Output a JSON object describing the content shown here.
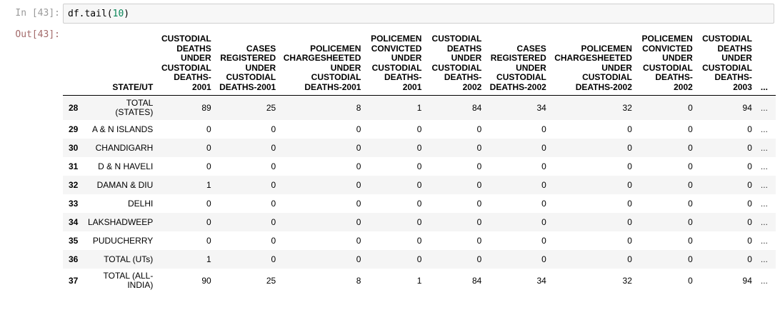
{
  "notebook": {
    "input_prompt": "In [43]:",
    "output_prompt": "Out[43]:",
    "code": {
      "prefix": "df.tail(",
      "arg": "10",
      "suffix": ")"
    }
  },
  "table": {
    "index_header": "",
    "columns": [
      "STATE/UT",
      "CUSTODIAL DEATHS UNDER CUSTODIAL DEATHS-2001",
      "CASES REGISTERED UNDER CUSTODIAL DEATHS-2001",
      "POLICEMEN CHARGESHEETED UNDER CUSTODIAL DEATHS-2001",
      "POLICEMEN CONVICTED UNDER CUSTODIAL DEATHS-2001",
      "CUSTODIAL DEATHS UNDER CUSTODIAL DEATHS-2002",
      "CASES REGISTERED UNDER CUSTODIAL DEATHS-2002",
      "POLICEMEN CHARGESHEETED UNDER CUSTODIAL DEATHS-2002",
      "POLICEMEN CONVICTED UNDER CUSTODIAL DEATHS-2002",
      "CUSTODIAL DEATHS UNDER CUSTODIAL DEATHS-2003",
      "..."
    ],
    "rows": [
      {
        "idx": "28",
        "state": "TOTAL (STATES)",
        "vals": [
          "89",
          "25",
          "8",
          "1",
          "84",
          "34",
          "32",
          "0",
          "94"
        ],
        "more": "..."
      },
      {
        "idx": "29",
        "state": "A & N ISLANDS",
        "vals": [
          "0",
          "0",
          "0",
          "0",
          "0",
          "0",
          "0",
          "0",
          "0"
        ],
        "more": "..."
      },
      {
        "idx": "30",
        "state": "CHANDIGARH",
        "vals": [
          "0",
          "0",
          "0",
          "0",
          "0",
          "0",
          "0",
          "0",
          "0"
        ],
        "more": "..."
      },
      {
        "idx": "31",
        "state": "D & N HAVELI",
        "vals": [
          "0",
          "0",
          "0",
          "0",
          "0",
          "0",
          "0",
          "0",
          "0"
        ],
        "more": "..."
      },
      {
        "idx": "32",
        "state": "DAMAN & DIU",
        "vals": [
          "1",
          "0",
          "0",
          "0",
          "0",
          "0",
          "0",
          "0",
          "0"
        ],
        "more": "..."
      },
      {
        "idx": "33",
        "state": "DELHI",
        "vals": [
          "0",
          "0",
          "0",
          "0",
          "0",
          "0",
          "0",
          "0",
          "0"
        ],
        "more": "..."
      },
      {
        "idx": "34",
        "state": "LAKSHADWEEP",
        "vals": [
          "0",
          "0",
          "0",
          "0",
          "0",
          "0",
          "0",
          "0",
          "0"
        ],
        "more": "..."
      },
      {
        "idx": "35",
        "state": "PUDUCHERRY",
        "vals": [
          "0",
          "0",
          "0",
          "0",
          "0",
          "0",
          "0",
          "0",
          "0"
        ],
        "more": "..."
      },
      {
        "idx": "36",
        "state": "TOTAL (UTs)",
        "vals": [
          "1",
          "0",
          "0",
          "0",
          "0",
          "0",
          "0",
          "0",
          "0"
        ],
        "more": "..."
      },
      {
        "idx": "37",
        "state": "TOTAL (ALL-INDIA)",
        "vals": [
          "90",
          "25",
          "8",
          "1",
          "84",
          "34",
          "32",
          "0",
          "94"
        ],
        "more": "..."
      }
    ]
  }
}
